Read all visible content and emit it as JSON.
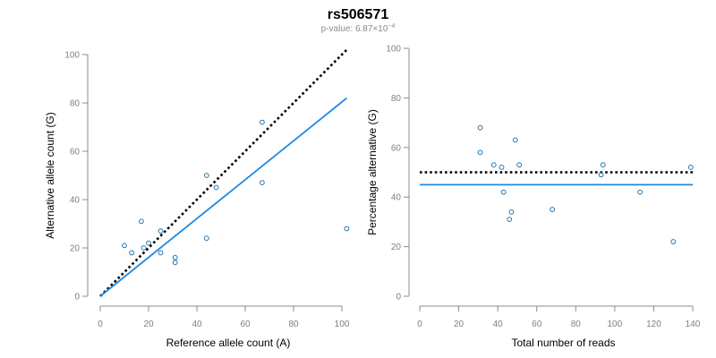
{
  "header": {
    "title": "rs506571",
    "subtitle_prefix": "p-value: 6.87×10",
    "subtitle_exp": "−4"
  },
  "colors": {
    "point": "#1f77b4",
    "fit_line": "#1e88e5",
    "reference_line": "#000000",
    "axis": "#8c8c8c"
  },
  "chart_data": [
    {
      "type": "scatter",
      "title": "",
      "xlabel": "Reference allele count (A)",
      "ylabel": "Alternative allele count (G)",
      "xlim": [
        0,
        100
      ],
      "ylim": [
        0,
        100
      ],
      "xticks": [
        0,
        20,
        40,
        60,
        80,
        100
      ],
      "yticks": [
        0,
        20,
        40,
        60,
        80,
        100
      ],
      "points": {
        "x": [
          10,
          13,
          17,
          18,
          20,
          25,
          25,
          31,
          31,
          44,
          44,
          48,
          67,
          67,
          102
        ],
        "y": [
          21,
          18,
          31,
          20,
          22,
          27,
          18,
          16,
          14,
          50,
          24,
          45,
          72,
          47,
          28
        ]
      },
      "lines": [
        {
          "style": "dotted",
          "color": "#000000",
          "x": [
            0,
            102
          ],
          "y": [
            0,
            102
          ]
        },
        {
          "style": "solid",
          "color": "#1e88e5",
          "x": [
            0,
            102
          ],
          "y": [
            0,
            82
          ]
        }
      ]
    },
    {
      "type": "scatter",
      "title": "",
      "xlabel": "Total number of reads",
      "ylabel": "Percentage alternative (G)",
      "xlim": [
        0,
        140
      ],
      "ylim": [
        0,
        100
      ],
      "xticks": [
        0,
        20,
        40,
        60,
        80,
        100,
        120,
        140
      ],
      "yticks": [
        0,
        20,
        40,
        60,
        80,
        100
      ],
      "points": {
        "x": [
          31,
          31,
          38,
          42,
          43,
          46,
          47,
          49,
          51,
          68,
          93,
          94,
          113,
          130,
          139
        ],
        "y": [
          68,
          58,
          53,
          52,
          42,
          31,
          34,
          63,
          53,
          35,
          49,
          53,
          42,
          22,
          52
        ]
      },
      "lines": [
        {
          "style": "dotted",
          "color": "#000000",
          "x": [
            0,
            140
          ],
          "y": [
            50,
            50
          ]
        },
        {
          "style": "solid",
          "color": "#1e88e5",
          "x": [
            0,
            140
          ],
          "y": [
            45,
            45
          ]
        }
      ]
    }
  ]
}
